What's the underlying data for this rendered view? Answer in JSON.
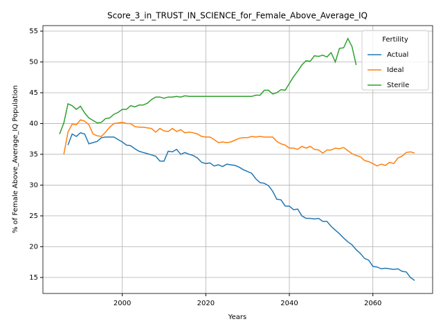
{
  "chart_data": {
    "type": "line",
    "title": "Score_3_in_TRUST_IN_SCIENCE_for_Female_Above_Average_IQ",
    "xlabel": "Years",
    "ylabel": "% of Female Above_Average_IQ Population",
    "legend_title": "Fertility",
    "legend_position": "upper right",
    "grid": true,
    "xlim": [
      1981,
      2074.3
    ],
    "ylim": [
      12.4,
      55.9
    ],
    "xticks": [
      2000,
      2020,
      2040,
      2060
    ],
    "yticks": [
      15,
      20,
      25,
      30,
      35,
      40,
      45,
      50,
      55
    ],
    "x": [
      1985,
      1986,
      1987,
      1988,
      1989,
      1990,
      1991,
      1992,
      1993,
      1994,
      1995,
      1996,
      1997,
      1998,
      1999,
      2000,
      2001,
      2002,
      2003,
      2004,
      2005,
      2006,
      2007,
      2008,
      2009,
      2010,
      2011,
      2012,
      2013,
      2014,
      2015,
      2016,
      2017,
      2018,
      2019,
      2020,
      2021,
      2022,
      2023,
      2024,
      2025,
      2026,
      2027,
      2028,
      2029,
      2030,
      2031,
      2032,
      2033,
      2034,
      2035,
      2036,
      2037,
      2038,
      2039,
      2040,
      2041,
      2042,
      2043,
      2044,
      2045,
      2046,
      2047,
      2048,
      2049,
      2050,
      2051,
      2052,
      2053,
      2054,
      2055,
      2056,
      2057,
      2058,
      2059,
      2060,
      2061,
      2062,
      2063,
      2064,
      2065,
      2066,
      2067,
      2068,
      2069,
      2070
    ],
    "series": [
      {
        "name": "Actual",
        "color": "#1f77b4",
        "values": [
          null,
          null,
          36.5,
          38.3,
          37.9,
          38.5,
          38.3,
          36.7,
          36.9,
          37.1,
          37.7,
          37.8,
          37.8,
          37.8,
          37.4,
          37.0,
          36.5,
          36.4,
          35.9,
          35.5,
          35.3,
          35.1,
          34.9,
          34.7,
          33.9,
          33.9,
          35.5,
          35.4,
          35.8,
          35.0,
          35.3,
          35.0,
          34.8,
          34.4,
          33.7,
          33.5,
          33.6,
          33.1,
          33.3,
          33.0,
          33.4,
          33.3,
          33.2,
          32.9,
          32.5,
          32.2,
          31.9,
          31.0,
          30.4,
          30.3,
          29.9,
          29.0,
          27.7,
          27.6,
          26.6,
          26.6,
          26.0,
          26.1,
          25.0,
          24.6,
          24.6,
          24.5,
          24.6,
          24.1,
          24.1,
          23.3,
          22.7,
          22.1,
          21.4,
          20.8,
          20.3,
          19.5,
          18.9,
          18.1,
          17.8,
          16.8,
          16.7,
          16.4,
          16.5,
          16.4,
          16.3,
          16.4,
          16.0,
          15.9,
          15.0,
          14.5
        ]
      },
      {
        "name": "Ideal",
        "color": "#ff7f0e",
        "values": [
          null,
          35.0,
          38.6,
          39.9,
          39.8,
          40.6,
          40.4,
          39.8,
          38.3,
          38.0,
          37.9,
          38.6,
          39.4,
          40.0,
          40.1,
          40.2,
          40.0,
          40.0,
          39.5,
          39.4,
          39.4,
          39.3,
          39.2,
          38.6,
          39.2,
          38.8,
          38.7,
          39.2,
          38.7,
          39.0,
          38.5,
          38.6,
          38.5,
          38.3,
          37.9,
          37.8,
          37.8,
          37.4,
          36.9,
          37.0,
          36.9,
          37.0,
          37.3,
          37.6,
          37.7,
          37.7,
          37.9,
          37.8,
          37.9,
          37.8,
          37.8,
          37.8,
          37.1,
          36.7,
          36.5,
          36.0,
          36.0,
          35.8,
          36.3,
          36.0,
          36.3,
          35.8,
          35.7,
          35.2,
          35.7,
          35.7,
          36.0,
          35.9,
          36.1,
          35.6,
          35.1,
          34.8,
          34.6,
          34.0,
          33.8,
          33.5,
          33.1,
          33.4,
          33.2,
          33.7,
          33.5,
          34.4,
          34.7,
          35.3,
          35.4,
          35.2
        ]
      },
      {
        "name": "Sterile",
        "color": "#2ca02c",
        "values": [
          38.3,
          40.1,
          43.2,
          42.9,
          42.3,
          42.8,
          41.7,
          40.9,
          40.5,
          40.1,
          40.2,
          40.8,
          40.9,
          41.5,
          41.8,
          42.3,
          42.3,
          42.9,
          42.7,
          43.0,
          43.0,
          43.3,
          43.9,
          44.3,
          44.3,
          44.1,
          44.3,
          44.3,
          44.4,
          44.3,
          44.5,
          44.4,
          44.4,
          44.4,
          44.4,
          44.4,
          44.4,
          44.4,
          44.4,
          44.4,
          44.4,
          44.4,
          44.4,
          44.4,
          44.4,
          44.4,
          44.4,
          44.6,
          44.6,
          45.4,
          45.4,
          44.8,
          45.0,
          45.5,
          45.4,
          46.5,
          47.6,
          48.5,
          49.5,
          50.2,
          50.1,
          51.0,
          50.9,
          51.1,
          50.8,
          51.5,
          50.0,
          52.2,
          52.3,
          53.8,
          52.5,
          49.5,
          null,
          null,
          null,
          null,
          null,
          null,
          null,
          null,
          null,
          null,
          null,
          null,
          null,
          null
        ]
      }
    ]
  }
}
